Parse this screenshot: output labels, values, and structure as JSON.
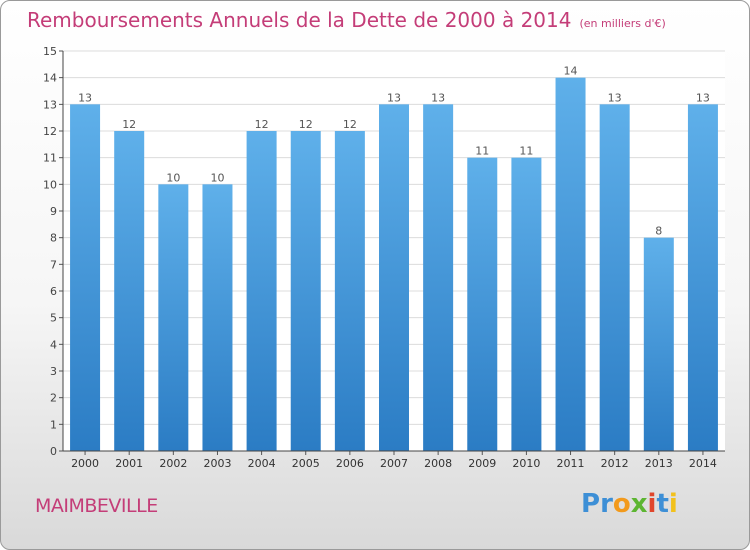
{
  "header": {
    "title": "Remboursements Annuels de la Dette de 2000 à 2014",
    "unit": "(en milliers d'€)"
  },
  "commune": "MAIMBEVILLE",
  "logo": {
    "letters": [
      "P",
      "r",
      "o",
      "x",
      "i",
      "t",
      "i"
    ]
  },
  "colors": {
    "title": "#c43d78",
    "bar_light": "#5fb0ea",
    "bar_dark": "#2b7cc4",
    "grid": "#dcdcdc"
  },
  "chart_data": {
    "type": "bar",
    "title": "Remboursements Annuels de la Dette de 2000 à 2014",
    "xlabel": "",
    "ylabel": "(en milliers d'€)",
    "categories": [
      "2000",
      "2001",
      "2002",
      "2003",
      "2004",
      "2005",
      "2006",
      "2007",
      "2008",
      "2009",
      "2010",
      "2011",
      "2012",
      "2013",
      "2014"
    ],
    "values": [
      13,
      12,
      10,
      10,
      12,
      12,
      12,
      13,
      13,
      11,
      11,
      14,
      13,
      8,
      13
    ],
    "ylim": [
      0,
      15
    ],
    "yticks": [
      0,
      1,
      2,
      3,
      4,
      5,
      6,
      7,
      8,
      9,
      10,
      11,
      12,
      13,
      14,
      15
    ],
    "grid": true
  }
}
